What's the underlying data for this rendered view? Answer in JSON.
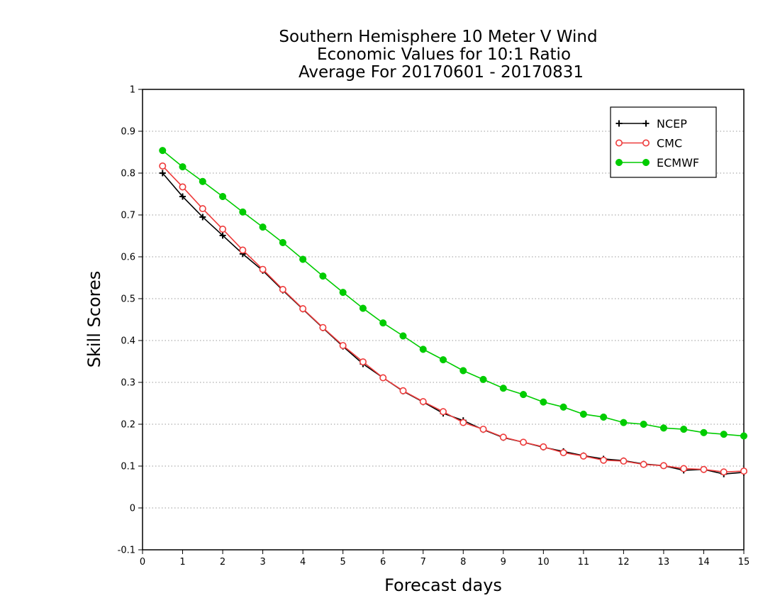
{
  "chart_data": {
    "type": "line",
    "title": [
      "Southern Hemisphere 10 Meter V Wind",
      "Economic Values for 10:1 Ratio",
      "Average For 20170601 - 20170831"
    ],
    "xlabel": "Forecast days",
    "ylabel": "Skill Scores",
    "xlim": [
      0,
      15
    ],
    "ylim": [
      -0.1,
      1
    ],
    "x_ticks": [
      "0",
      "1",
      "2",
      "3",
      "4",
      "5",
      "6",
      "7",
      "8",
      "9",
      "10",
      "11",
      "12",
      "13",
      "14",
      "15"
    ],
    "y_ticks": [
      "-0.1",
      "0",
      "0.1",
      "0.2",
      "0.3",
      "0.4",
      "0.5",
      "0.6",
      "0.7",
      "0.8",
      "0.9",
      "1"
    ],
    "grid": "horizontal dotted",
    "legend_position": "top-right",
    "x": [
      0.5,
      1,
      1.5,
      2,
      2.5,
      3,
      3.5,
      4,
      4.5,
      5,
      5.5,
      6,
      6.5,
      7,
      7.5,
      8,
      8.5,
      9,
      9.5,
      10,
      10.5,
      11,
      11.5,
      12,
      12.5,
      13,
      13.5,
      14,
      14.5,
      15
    ],
    "series": [
      {
        "name": "NCEP",
        "color": "#000000",
        "marker": "plus",
        "values": [
          0.8,
          0.744,
          0.695,
          0.651,
          0.607,
          0.567,
          0.52,
          0.475,
          0.43,
          0.386,
          0.344,
          0.311,
          0.279,
          0.253,
          0.226,
          0.209,
          0.187,
          0.168,
          0.157,
          0.145,
          0.135,
          0.125,
          0.117,
          0.113,
          0.105,
          0.101,
          0.09,
          0.092,
          0.081,
          0.085
        ]
      },
      {
        "name": "CMC",
        "color": "#ee3b3b",
        "marker": "open-circle",
        "values": [
          0.817,
          0.767,
          0.715,
          0.666,
          0.616,
          0.57,
          0.522,
          0.476,
          0.431,
          0.388,
          0.349,
          0.311,
          0.28,
          0.254,
          0.23,
          0.204,
          0.188,
          0.169,
          0.157,
          0.146,
          0.132,
          0.124,
          0.114,
          0.112,
          0.104,
          0.101,
          0.094,
          0.092,
          0.086,
          0.088
        ]
      },
      {
        "name": "ECMWF",
        "color": "#00cc00",
        "marker": "filled-circle",
        "values": [
          0.854,
          0.815,
          0.78,
          0.744,
          0.707,
          0.671,
          0.634,
          0.594,
          0.554,
          0.515,
          0.477,
          0.442,
          0.411,
          0.379,
          0.354,
          0.328,
          0.307,
          0.286,
          0.271,
          0.253,
          0.241,
          0.224,
          0.217,
          0.204,
          0.2,
          0.191,
          0.188,
          0.18,
          0.176,
          0.172
        ]
      }
    ]
  }
}
